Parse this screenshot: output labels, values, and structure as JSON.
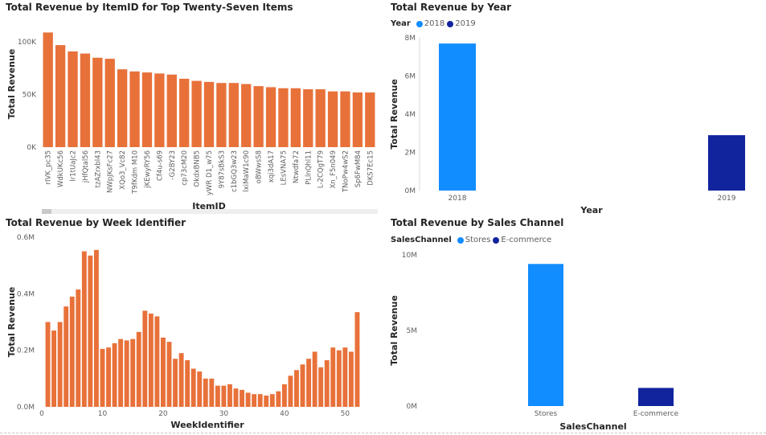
{
  "chart_data": [
    {
      "type": "bar",
      "title": "Total Revenue by ItemID for Top Twenty-Seven Items",
      "xlabel": "ItemID",
      "ylabel": "Total Revenue",
      "ylim": [
        0,
        120000
      ],
      "yticks": [
        0,
        50000,
        100000
      ],
      "ytick_labels": [
        "0K",
        "50K",
        "100K"
      ],
      "color": "#E8713A",
      "categories": [
        "rIVK_pc35",
        "WdkUKc56",
        "lr1tUaJc2",
        "jHfQtal56",
        "tzAZrxbl43",
        "NWpJKsFc27",
        "XQo3_Vc82",
        "T9fKdm M10",
        "jKEwyRY56",
        "Cf4u-s69",
        "-G2BY23",
        "cp73cM20",
        "OkdxBNB5",
        "yWR D1_w75",
        "9Y87sBkS3",
        "c1bGQ3w23",
        "lxiMaW1c90",
        "oBWwsS8",
        "xqi3dA17",
        "LEsVNA75",
        "Ntwdfa72",
        "PLlnQhl11",
        "L-2CQgT79",
        "Xn_F5n049",
        "TNoPw4wS2",
        "Sp6FwM84",
        "DKS7Ec15"
      ],
      "values": [
        109000,
        97000,
        91000,
        89000,
        85000,
        84000,
        74000,
        72000,
        71000,
        70000,
        69000,
        65000,
        63000,
        62000,
        61000,
        61000,
        60000,
        58000,
        57000,
        56000,
        56000,
        55000,
        55000,
        53000,
        53000,
        52000,
        52000
      ]
    },
    {
      "type": "bar",
      "title": "Total Revenue by Year",
      "xlabel": "Year",
      "ylabel": "Total Revenue",
      "legend_title": "Year",
      "legend": [
        {
          "name": "2018",
          "color": "#118DFF"
        },
        {
          "name": "2019",
          "color": "#12239E"
        }
      ],
      "categories": [
        "2018",
        "2019"
      ],
      "values": [
        7700000,
        2900000
      ],
      "ylim": [
        0,
        8000000
      ],
      "yticks": [
        0,
        2000000,
        4000000,
        6000000,
        8000000
      ],
      "ytick_labels": [
        "0M",
        "2M",
        "4M",
        "6M",
        "8M"
      ]
    },
    {
      "type": "bar",
      "title": "Total Revenue by Week Identifier",
      "xlabel": "WeekIdentifier",
      "ylabel": "Total Revenue",
      "ylim": [
        0,
        600000
      ],
      "yticks": [
        0,
        200000,
        400000,
        600000
      ],
      "ytick_labels": [
        "0.0M",
        "0.2M",
        "0.4M",
        "0.6M"
      ],
      "xlim": [
        0,
        53
      ],
      "xticks": [
        0,
        10,
        20,
        30,
        40,
        50
      ],
      "color": "#E8713A",
      "x": [
        1,
        2,
        3,
        4,
        5,
        6,
        7,
        8,
        9,
        10,
        11,
        12,
        13,
        14,
        15,
        16,
        17,
        18,
        19,
        20,
        21,
        22,
        23,
        24,
        25,
        26,
        27,
        28,
        29,
        30,
        31,
        32,
        33,
        34,
        35,
        36,
        37,
        38,
        39,
        40,
        41,
        42,
        43,
        44,
        45,
        46,
        47,
        48,
        49,
        50,
        51,
        52
      ],
      "values": [
        300000,
        270000,
        300000,
        355000,
        390000,
        415000,
        550000,
        535000,
        555000,
        205000,
        210000,
        225000,
        240000,
        235000,
        240000,
        265000,
        340000,
        330000,
        320000,
        245000,
        230000,
        170000,
        190000,
        165000,
        135000,
        125000,
        100000,
        100000,
        75000,
        75000,
        80000,
        65000,
        60000,
        50000,
        45000,
        45000,
        40000,
        45000,
        55000,
        80000,
        110000,
        130000,
        150000,
        170000,
        195000,
        140000,
        165000,
        210000,
        200000,
        210000,
        195000,
        335000
      ]
    },
    {
      "type": "bar",
      "title": "Total Revenue by Sales Channel",
      "xlabel": "SalesChannel",
      "ylabel": "Total Revenue",
      "legend_title": "SalesChannel",
      "legend": [
        {
          "name": "Stores",
          "color": "#118DFF"
        },
        {
          "name": "E-commerce",
          "color": "#12239E"
        }
      ],
      "categories": [
        "Stores",
        "E-commerce"
      ],
      "values": [
        9400000,
        1200000
      ],
      "ylim": [
        0,
        10000000
      ],
      "yticks": [
        0,
        5000000,
        10000000
      ],
      "ytick_labels": [
        "0M",
        "5M",
        "10M"
      ]
    }
  ]
}
